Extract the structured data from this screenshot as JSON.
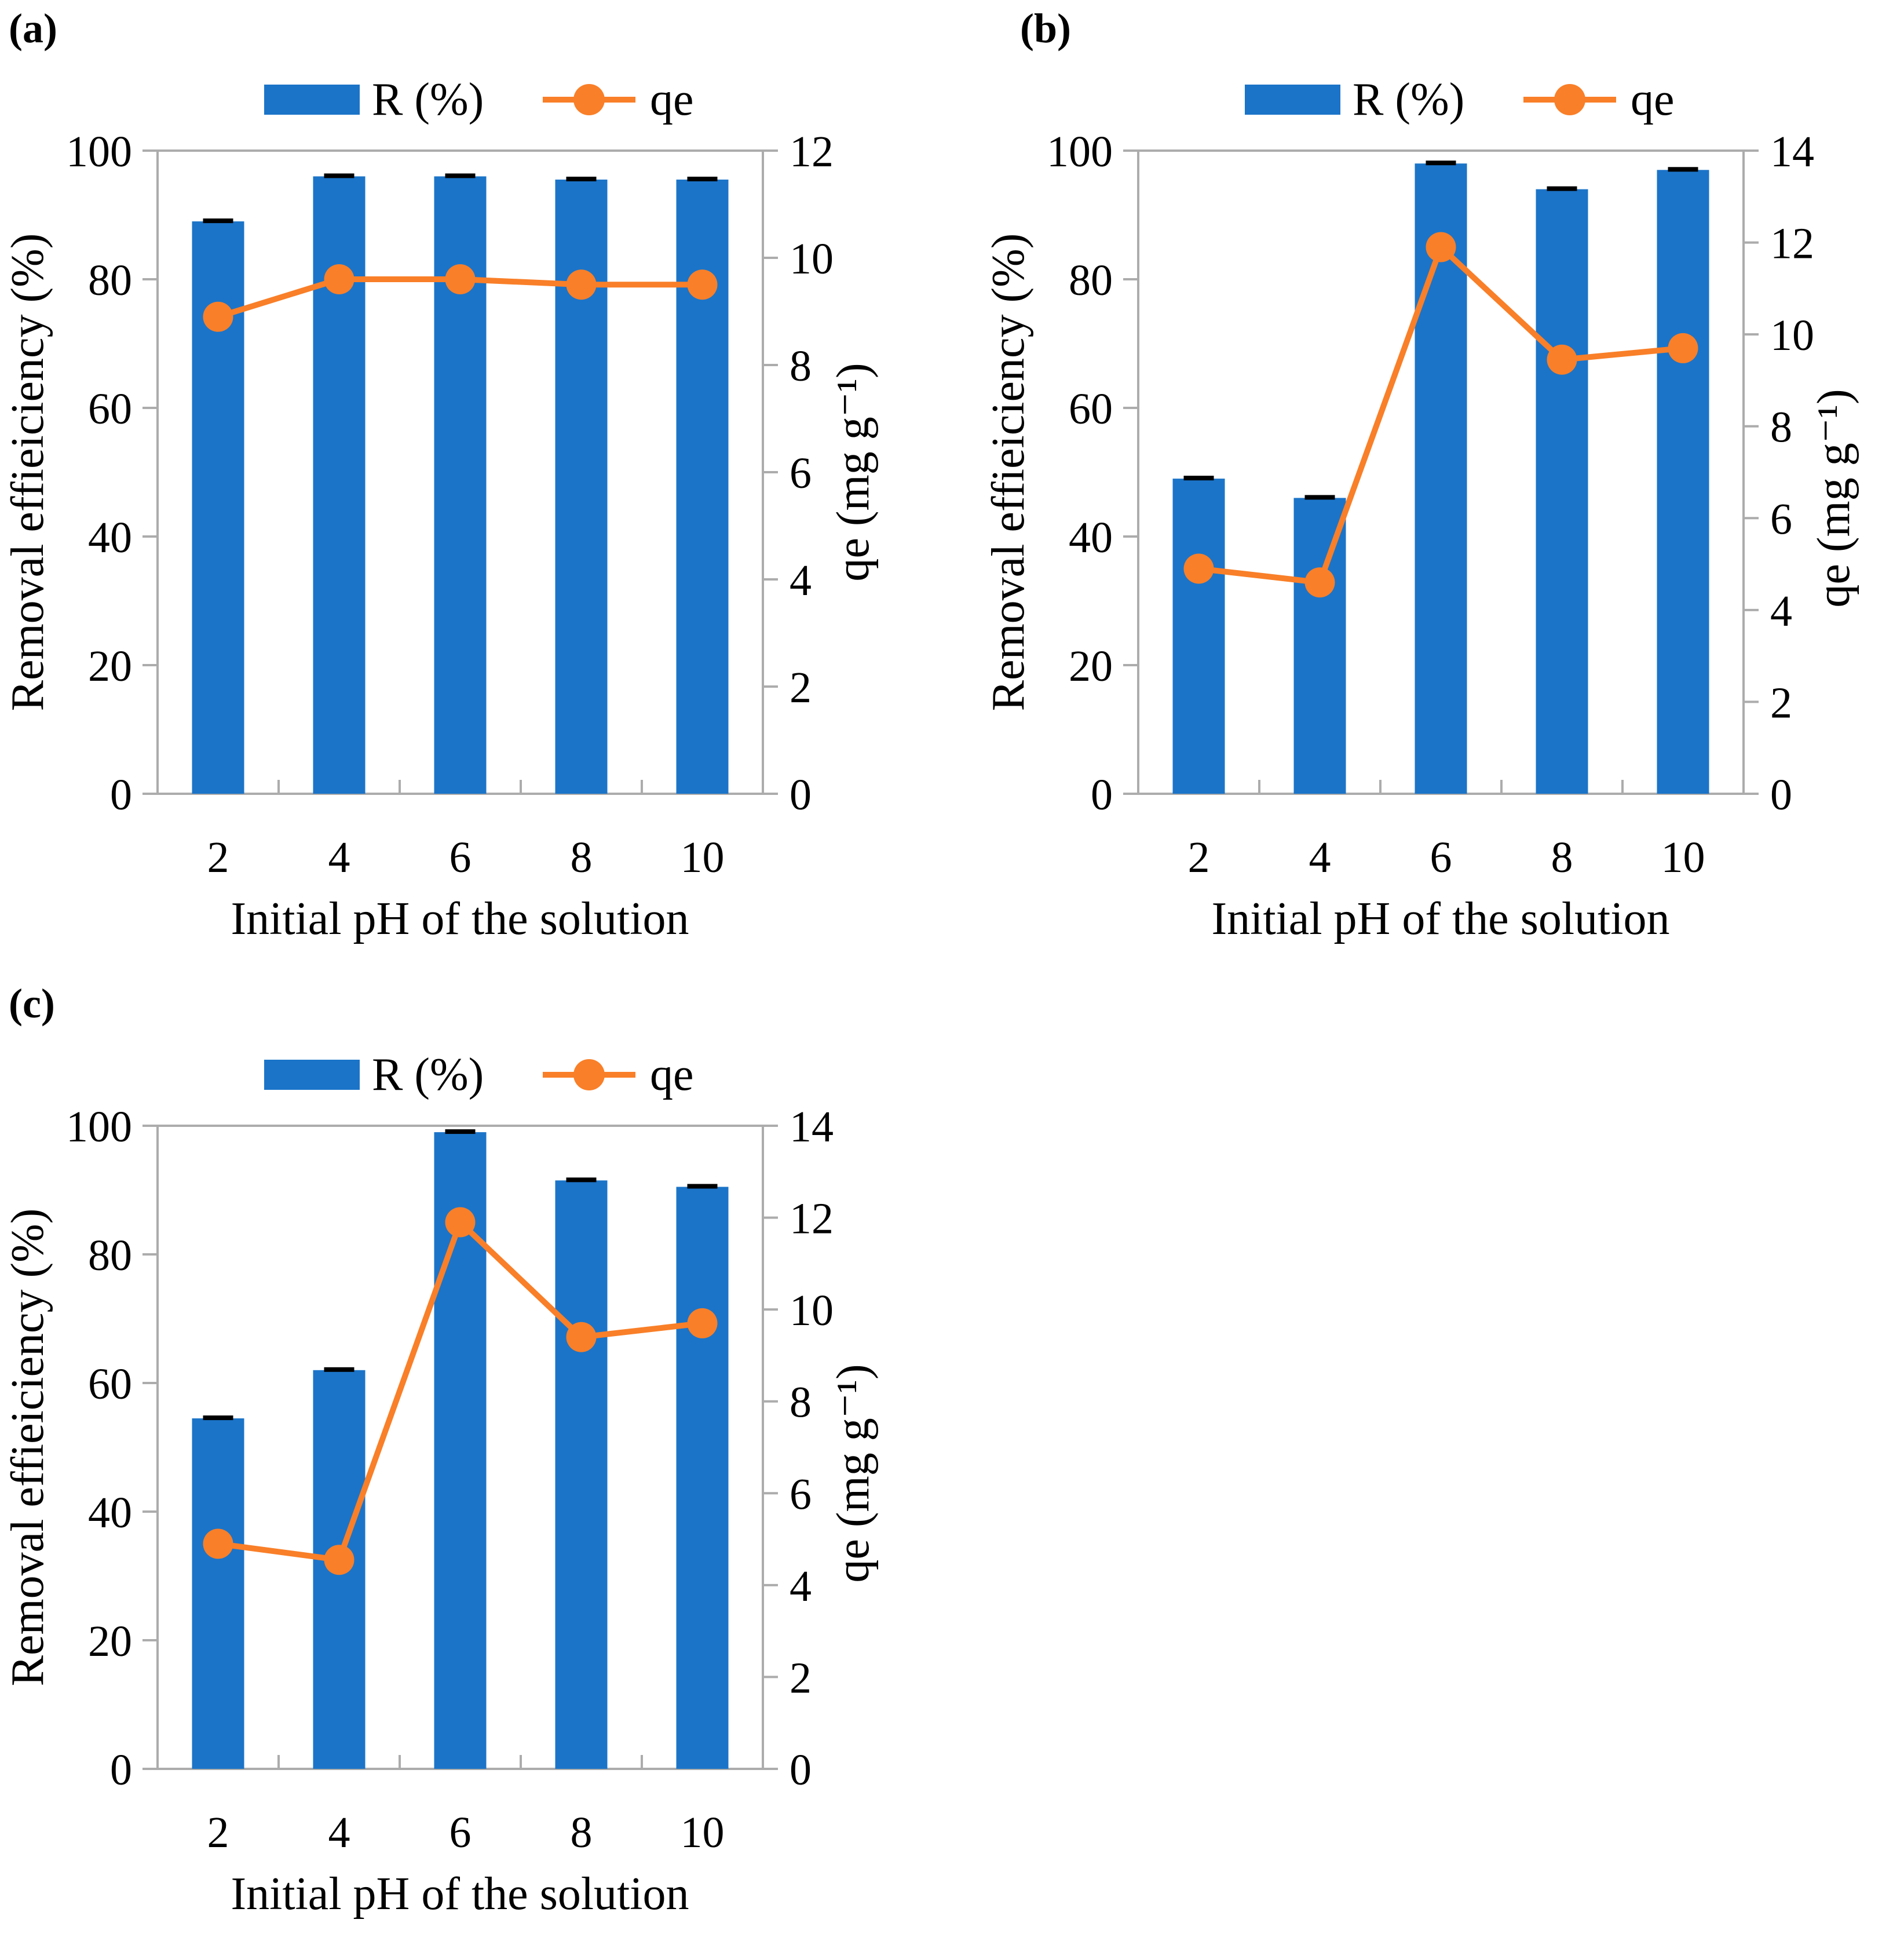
{
  "colors": {
    "bar": "#1B74C8",
    "line": "#F97F28",
    "axis": "#ACACAC",
    "error": "#000000",
    "text": "#000000",
    "background": "#FFFFFF"
  },
  "chart_data": [
    {
      "panel_label": "(a)",
      "type": "bar-line-combo",
      "categories": [
        "2",
        "4",
        "6",
        "8",
        "10"
      ],
      "series": [
        {
          "name": "R (%)",
          "type": "bar",
          "axis": "left",
          "values": [
            89,
            96,
            96,
            95.5,
            95.5
          ]
        },
        {
          "name": "qe",
          "type": "line",
          "axis": "right",
          "values": [
            8.9,
            9.6,
            9.6,
            9.5,
            9.5
          ]
        }
      ],
      "error_bars": true,
      "title": "",
      "xlabel": "Initial pH of the solution",
      "ylabel_left": "Removal effieiciency (%)",
      "ylabel_right": "qe (mg g⁻¹)",
      "ylim_left": [
        0,
        100
      ],
      "yticks_left": [
        0,
        20,
        40,
        60,
        80,
        100
      ],
      "ylim_right": [
        0,
        12
      ],
      "yticks_right": [
        0,
        2,
        4,
        6,
        8,
        10,
        12
      ],
      "legend": {
        "bar_label": "R (%)",
        "line_label": "qe",
        "position": "top"
      },
      "grid": false
    },
    {
      "panel_label": "(b)",
      "type": "bar-line-combo",
      "categories": [
        "2",
        "4",
        "6",
        "8",
        "10"
      ],
      "series": [
        {
          "name": "R (%)",
          "type": "bar",
          "axis": "left",
          "values": [
            49,
            46,
            98,
            94,
            97
          ]
        },
        {
          "name": "qe",
          "type": "line",
          "axis": "right",
          "values": [
            4.9,
            4.6,
            11.9,
            9.45,
            9.7
          ]
        }
      ],
      "error_bars": true,
      "title": "",
      "xlabel": "Initial pH of the solution",
      "ylabel_left": "Removal effieiciency (%)",
      "ylabel_right": "qe (mg g⁻¹)",
      "ylim_left": [
        0,
        100
      ],
      "yticks_left": [
        0,
        20,
        40,
        60,
        80,
        100
      ],
      "ylim_right": [
        0,
        14
      ],
      "yticks_right": [
        0,
        2,
        4,
        6,
        8,
        10,
        12,
        14
      ],
      "legend": {
        "bar_label": "R (%)",
        "line_label": "qe",
        "position": "top"
      },
      "grid": false
    },
    {
      "panel_label": "(c)",
      "type": "bar-line-combo",
      "categories": [
        "2",
        "4",
        "6",
        "8",
        "10"
      ],
      "series": [
        {
          "name": "R (%)",
          "type": "bar",
          "axis": "left",
          "values": [
            54.5,
            62,
            99,
            91.5,
            90.5
          ]
        },
        {
          "name": "qe",
          "type": "line",
          "axis": "right",
          "values": [
            4.9,
            4.55,
            11.9,
            9.4,
            9.7
          ]
        }
      ],
      "error_bars": true,
      "title": "",
      "xlabel": "Initial pH of the solution",
      "ylabel_left": "Removal effieiciency (%)",
      "ylabel_right": "qe (mg g⁻¹)",
      "ylim_left": [
        0,
        100
      ],
      "yticks_left": [
        0,
        20,
        40,
        60,
        80,
        100
      ],
      "ylim_right": [
        0,
        14
      ],
      "yticks_right": [
        0,
        2,
        4,
        6,
        8,
        10,
        12,
        14
      ],
      "legend": {
        "bar_label": "R (%)",
        "line_label": "qe",
        "position": "top"
      },
      "grid": false
    }
  ]
}
